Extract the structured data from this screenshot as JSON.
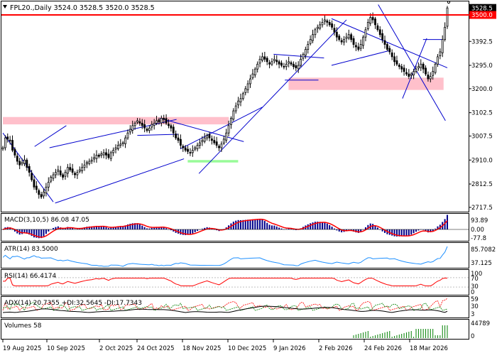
{
  "header": {
    "symbol_line": "FPL20.,Daily  3524.0 3528.5 3520.0 3528.5"
  },
  "colors": {
    "candle": "#000000",
    "resistance_line": "#ff0000",
    "zone_pink": "#ffc0cb",
    "zone_green": "#98fb98",
    "trendline": "#0000cd",
    "macd_hist": "#00008b",
    "macd_signal": "#ff0000",
    "atr_line": "#1e90ff",
    "rsi_line": "#ff0000",
    "adx_line": "#000000",
    "di_plus": "#ff0000",
    "di_minus": "#008000",
    "volume_bar": "#008000",
    "price_tag_red": "#ff0000",
    "price_tag_black": "#000000"
  },
  "panels": {
    "macd": {
      "label": "MACD(3,10,5) 86.08 47.05",
      "axis": [
        "93.89",
        "0.00",
        "-77.8"
      ]
    },
    "atr": {
      "label": "ATR(14) 83.5000",
      "axis": [
        "85.7082",
        "37.125"
      ]
    },
    "rsi": {
      "label": "RSI(14) 66.4174",
      "axis": [
        "100",
        "70",
        "30",
        "0"
      ]
    },
    "adx": {
      "label": "ADX(14) 20.7355 +DI:32.5645 -DI:17.7343",
      "axis": [
        "59",
        "30",
        "3"
      ]
    },
    "volume": {
      "label": "Volumes 58",
      "axis": [
        "44789",
        "0"
      ]
    }
  },
  "chart_data": {
    "type": "candlestick",
    "title": "FPL20.,Daily",
    "last_bar": {
      "open": 3524.0,
      "high": 3528.5,
      "low": 3520.0,
      "close": 3528.5
    },
    "y_ticks": [
      "3500.0",
      "3392.5",
      "3295.0",
      "3200.0",
      "3102.5",
      "3007.5",
      "2910.0",
      "2812.5",
      "2717.5"
    ],
    "price_tags": [
      {
        "label": "3528.5",
        "value": 3528.5
      },
      {
        "label": "3500.0",
        "value": 3500.0
      }
    ],
    "x_labels": [
      "19 Aug 2025",
      "10 Sep 2025",
      "2 Oct 2025",
      "24 Oct 2025",
      "18 Nov 2025",
      "10 Dec 2025",
      "9 Jan 2026",
      "2 Feb 2026",
      "24 Feb 2026",
      "18 Mar 2026"
    ],
    "ylim": [
      2700,
      3555
    ],
    "resistance_level": 3500.0,
    "zones": [
      {
        "color": "pink",
        "y_low": 3055,
        "y_high": 3085,
        "date_start": "2025-08-01",
        "date_end": "2025-11-30"
      },
      {
        "color": "green",
        "y_low": 2900,
        "y_high": 2910,
        "date_start": "2025-11-08",
        "date_end": "2025-12-05"
      },
      {
        "color": "pink",
        "y_low": 3195,
        "y_high": 3245,
        "date_start": "2026-01-01",
        "date_end": "2026-03-25"
      }
    ],
    "trendlines": [
      {
        "from": [
          "2025-08-01",
          3020
        ],
        "to": [
          "2025-08-28",
          2740
        ]
      },
      {
        "from": [
          "2025-08-18",
          2965
        ],
        "to": [
          "2025-09-04",
          3050
        ]
      },
      {
        "from": [
          "2025-08-26",
          2960
        ],
        "to": [
          "2025-11-02",
          3075
        ]
      },
      {
        "from": [
          "2025-08-29",
          2735
        ],
        "to": [
          "2025-11-06",
          2915
        ]
      },
      {
        "from": [
          "2025-11-04",
          2955
        ],
        "to": [
          "2025-12-18",
          3125
        ]
      },
      {
        "from": [
          "2025-10-12",
          3010
        ],
        "to": [
          "2025-11-03",
          3015
        ]
      },
      {
        "from": [
          "2025-10-24",
          3080
        ],
        "to": [
          "2025-12-08",
          2985
        ]
      },
      {
        "from": [
          "2025-11-14",
          2855
        ],
        "to": [
          "2026-02-01",
          3480
        ]
      },
      {
        "from": [
          "2025-12-24",
          3340
        ],
        "to": [
          "2026-01-20",
          3325
        ]
      },
      {
        "from": [
          "2025-12-30",
          3235
        ],
        "to": [
          "2026-01-17",
          3235
        ]
      },
      {
        "from": [
          "2026-01-24",
          3295
        ],
        "to": [
          "2026-02-24",
          3355
        ]
      },
      {
        "from": [
          "2026-01-24",
          3485
        ],
        "to": [
          "2026-03-27",
          3285
        ]
      },
      {
        "from": [
          "2026-02-18",
          3542
        ],
        "to": [
          "2026-03-26",
          3070
        ]
      },
      {
        "from": [
          "2026-03-03",
          3160
        ],
        "to": [
          "2026-03-16",
          3405
        ]
      },
      {
        "from": [
          "2026-03-14",
          3400
        ],
        "to": [
          "2026-03-24",
          3400
        ]
      }
    ],
    "series": [
      {
        "name": "close",
        "dates_start": "2025-08-01",
        "dates_end": "2026-03-27",
        "values": [
          2960,
          3000,
          2995,
          2990,
          2950,
          2930,
          2905,
          2890,
          2900,
          2910,
          2880,
          2860,
          2830,
          2800,
          2790,
          2770,
          2760,
          2780,
          2800,
          2820,
          2840,
          2850,
          2860,
          2870,
          2850,
          2840,
          2860,
          2880,
          2870,
          2860,
          2850,
          2860,
          2870,
          2880,
          2890,
          2900,
          2905,
          2910,
          2920,
          2930,
          2925,
          2935,
          2940,
          2930,
          2920,
          2940,
          2950,
          2960,
          2970,
          2975,
          2980,
          3000,
          3020,
          3035,
          3050,
          3060,
          3070,
          3060,
          3050,
          3040,
          3030,
          3040,
          3055,
          3060,
          3070,
          3065,
          3080,
          3075,
          3060,
          3050,
          3040,
          3020,
          3000,
          2990,
          2970,
          2960,
          2950,
          2945,
          2940,
          2950,
          2960,
          2970,
          2980,
          2990,
          3000,
          3010,
          3000,
          2990,
          2980,
          2970,
          2960,
          2975,
          2995,
          3020,
          3050,
          3080,
          3110,
          3130,
          3150,
          3160,
          3180,
          3200,
          3220,
          3240,
          3260,
          3280,
          3300,
          3320,
          3330,
          3320,
          3310,
          3300,
          3310,
          3320,
          3310,
          3300,
          3295,
          3290,
          3300,
          3310,
          3300,
          3290,
          3285,
          3295,
          3320,
          3340,
          3360,
          3380,
          3400,
          3420,
          3440,
          3450,
          3460,
          3470,
          3480,
          3470,
          3460,
          3450,
          3430,
          3410,
          3400,
          3390,
          3400,
          3410,
          3420,
          3400,
          3380,
          3370,
          3360,
          3380,
          3410,
          3440,
          3470,
          3490,
          3480,
          3460,
          3440,
          3420,
          3400,
          3380,
          3360,
          3350,
          3330,
          3310,
          3300,
          3290,
          3280,
          3270,
          3260,
          3250,
          3260,
          3270,
          3280,
          3290,
          3300,
          3280,
          3260,
          3240,
          3250,
          3270,
          3300,
          3330,
          3350,
          3400,
          3450,
          3528.5
        ]
      }
    ]
  }
}
